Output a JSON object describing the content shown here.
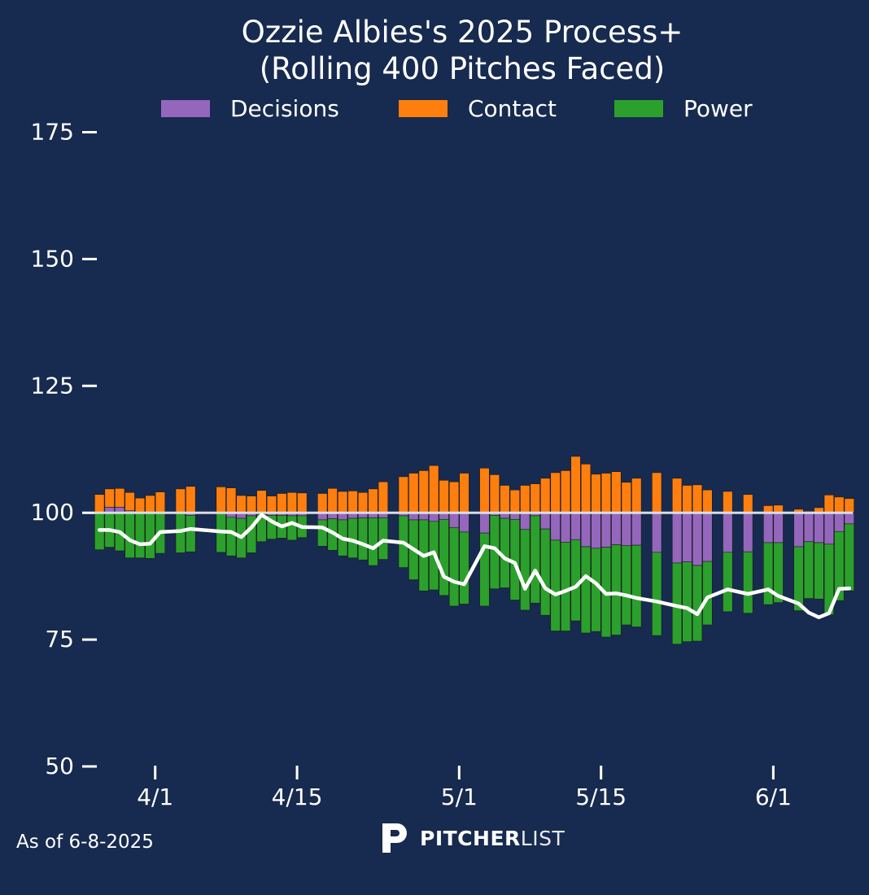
{
  "chart_data": {
    "type": "bar",
    "title_line1": "Ozzie Albies's 2025 Process+",
    "title_line2": "(Rolling 400 Pitches Faced)",
    "legend": [
      {
        "label": "Decisions",
        "color": "#9467bd"
      },
      {
        "label": "Contact",
        "color": "#ff7f0e"
      },
      {
        "label": "Power",
        "color": "#2ca02c"
      }
    ],
    "legend_position": "top-center",
    "y_ticks": [
      50,
      75,
      100,
      125,
      150,
      175
    ],
    "y_ticks_labels": [
      "50",
      "75",
      "100",
      "125",
      "150",
      "175"
    ],
    "ylim": [
      50,
      177
    ],
    "x_ticks_labels": [
      "4/1",
      "4/15",
      "5/1",
      "5/15",
      "6/1"
    ],
    "x_ticks_days": [
      0,
      14,
      30,
      44,
      61
    ],
    "x_range_days": [
      -6,
      69
    ],
    "baseline": 100,
    "line_color": "#ffffff",
    "days": [
      -5.5,
      -4.5,
      -3.5,
      -2.5,
      -1.5,
      -0.5,
      0.5,
      2.5,
      3.5,
      6.5,
      7.5,
      8.5,
      9.5,
      10.5,
      11.5,
      12.5,
      13.5,
      14.5,
      16.5,
      17.5,
      18.5,
      19.5,
      20.5,
      21.5,
      22.5,
      24.5,
      25.5,
      26.5,
      27.5,
      28.5,
      29.5,
      30.5,
      32.5,
      33.5,
      34.5,
      35.5,
      36.5,
      37.5,
      38.5,
      39.5,
      40.5,
      41.5,
      42.5,
      43.5,
      44.5,
      45.5,
      46.5,
      47.5,
      49.5,
      51.5,
      52.5,
      53.5,
      54.5,
      56.5,
      58.5,
      60.5,
      61.5,
      63.5,
      64.5,
      65.5,
      66.5,
      67.5,
      68.5
    ],
    "series": [
      {
        "name": "Decisions",
        "values": [
          0.0,
          1.1,
          1.1,
          0.4,
          0.0,
          0.0,
          0.0,
          0.0,
          -0.5,
          0.0,
          -0.9,
          -1.1,
          -0.6,
          -0.3,
          -0.5,
          -0.5,
          -0.6,
          -0.6,
          -1.4,
          -1.2,
          -1.4,
          -1.1,
          -1.0,
          -1.0,
          -1.0,
          -0.6,
          -1.4,
          -1.4,
          -1.7,
          -1.3,
          -2.9,
          -3.8,
          -4.0,
          -0.5,
          -1.1,
          -1.3,
          -3.3,
          -0.6,
          -3.2,
          -5.4,
          -5.8,
          -5.3,
          -6.7,
          -7.0,
          -6.8,
          -6.3,
          -6.5,
          -6.4,
          -7.8,
          -9.9,
          -9.7,
          -10.4,
          -9.6,
          -7.8,
          -7.7,
          -5.9,
          -5.9,
          -6.7,
          -5.7,
          -5.9,
          -6.2,
          -3.7,
          -2.2
        ]
      },
      {
        "name": "Contact",
        "values": [
          3.6,
          3.6,
          3.7,
          3.6,
          2.9,
          3.4,
          4.1,
          4.7,
          5.2,
          5.1,
          4.9,
          3.4,
          3.3,
          4.4,
          3.3,
          3.8,
          4.0,
          3.9,
          3.8,
          4.8,
          4.2,
          4.3,
          4.0,
          4.7,
          6.1,
          7.1,
          7.8,
          8.3,
          9.3,
          6.4,
          6.1,
          7.8,
          8.8,
          7.5,
          5.4,
          4.5,
          5.4,
          5.7,
          6.8,
          7.9,
          8.3,
          11.1,
          9.6,
          7.6,
          7.8,
          8.1,
          6.0,
          6.8,
          7.9,
          6.8,
          5.4,
          5.5,
          4.5,
          4.2,
          3.6,
          1.4,
          1.5,
          0.7,
          0.3,
          1.0,
          3.5,
          3.1,
          2.8
        ]
      },
      {
        "name": "Power",
        "values": [
          -7.3,
          -6.8,
          -7.5,
          -8.9,
          -8.9,
          -9.0,
          -8.0,
          -7.9,
          -7.2,
          -7.8,
          -7.6,
          -7.8,
          -7.3,
          -5.4,
          -4.7,
          -4.5,
          -4.8,
          -4.3,
          -5.2,
          -6.2,
          -7.1,
          -7.8,
          -8.3,
          -9.4,
          -8.2,
          -10.2,
          -11.8,
          -14.0,
          -13.5,
          -15.0,
          -15.5,
          -14.2,
          -14.4,
          -14.5,
          -13.7,
          -15.9,
          -15.9,
          -17.2,
          -17.0,
          -17.9,
          -17.5,
          -16.0,
          -17.0,
          -16.4,
          -17.7,
          -17.8,
          -15.6,
          -16.1,
          -16.4,
          -16.0,
          -15.7,
          -14.9,
          -12.5,
          -11.7,
          -12.1,
          -12.2,
          -11.8,
          -12.6,
          -11.2,
          -11.1,
          -13.9,
          -13.6,
          -13.2
        ]
      },
      {
        "name": "Process+",
        "values": [
          96.6,
          96.6,
          96.2,
          94.6,
          93.8,
          93.9,
          96.2,
          96.4,
          96.8,
          96.3,
          96.2,
          95.2,
          97.1,
          99.6,
          98.3,
          97.3,
          98.0,
          97.2,
          97.1,
          96.1,
          94.9,
          94.5,
          93.8,
          93.0,
          94.5,
          94.1,
          92.8,
          91.5,
          92.2,
          87.4,
          86.4,
          85.9,
          93.4,
          93.0,
          91.0,
          90.1,
          85.0,
          88.6,
          85.1,
          83.9,
          84.6,
          85.4,
          87.5,
          86.1,
          84.0,
          84.1,
          83.7,
          83.2,
          82.5,
          81.6,
          81.2,
          80.0,
          83.3,
          84.9,
          84.0,
          84.9,
          83.6,
          82.1,
          80.3,
          79.4,
          80.2,
          85.0,
          85.1
        ]
      }
    ]
  },
  "footer": {
    "date_text": "As of 6-8-2025"
  },
  "brand": {
    "strong": "PITCHER",
    "light": "LIST"
  },
  "colors": {
    "background": "#172a4f",
    "baseline": "#d9dde6",
    "bar_edge": "#1a1a1a"
  }
}
